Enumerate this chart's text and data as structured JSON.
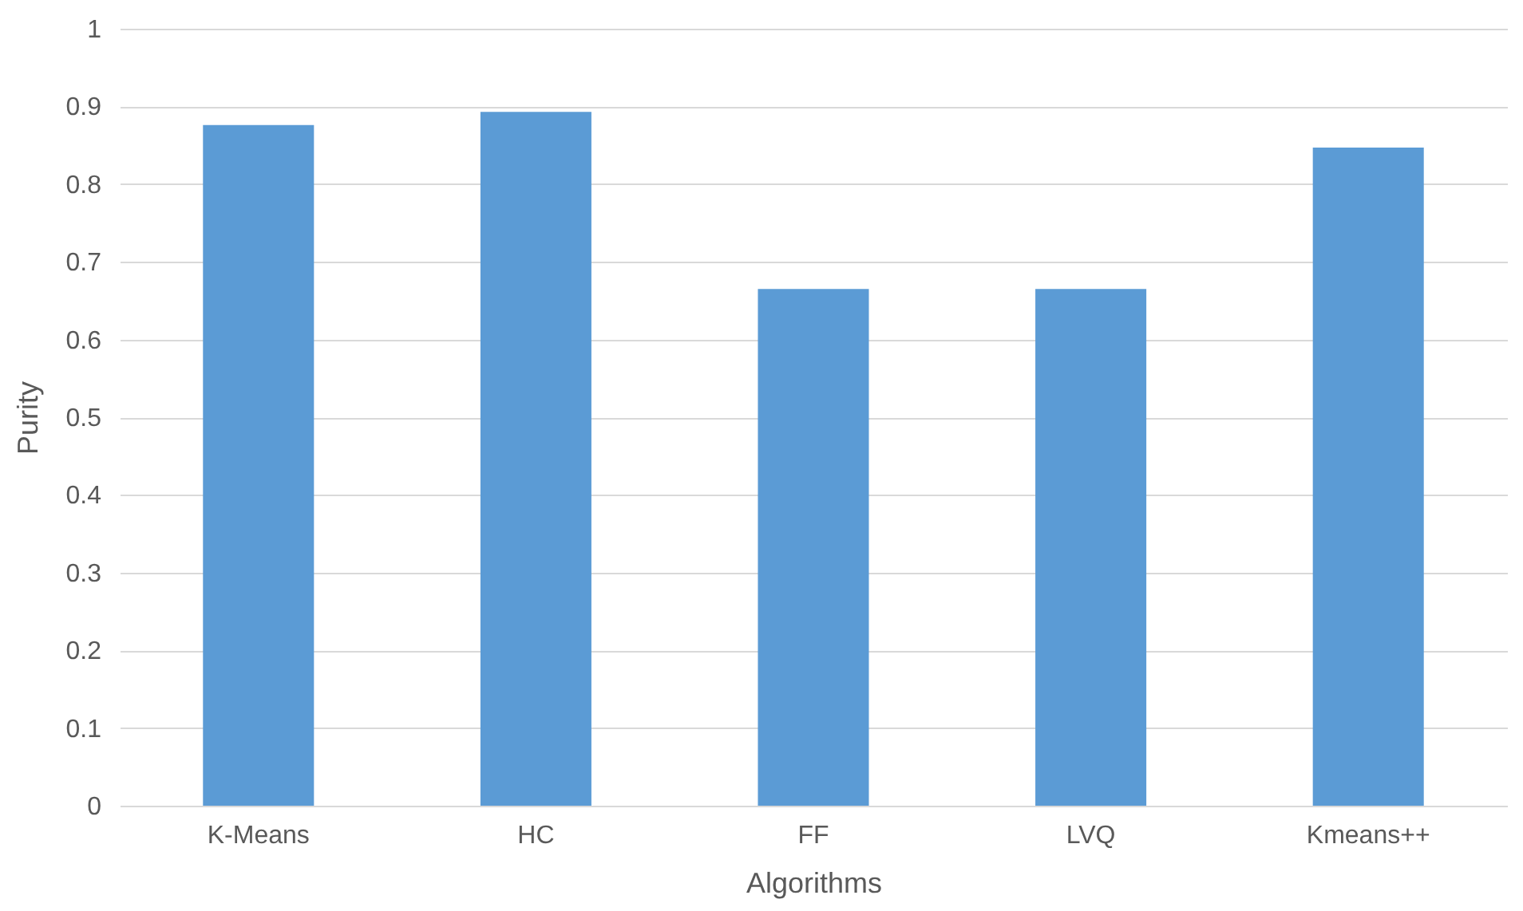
{
  "chart_data": {
    "type": "bar",
    "xlabel": "Algorithms",
    "ylabel": "Purity",
    "categories": [
      "K-Means",
      "HC",
      "FF",
      "LVQ",
      "Kmeans++"
    ],
    "values": [
      0.876,
      0.893,
      0.665,
      0.665,
      0.847
    ],
    "color": "#5b9bd5",
    "ylim": [
      0,
      1
    ],
    "yticks": [
      0,
      0.1,
      0.2,
      0.3,
      0.4,
      0.5,
      0.6,
      0.7,
      0.8,
      0.9,
      1
    ],
    "grid": "y"
  }
}
